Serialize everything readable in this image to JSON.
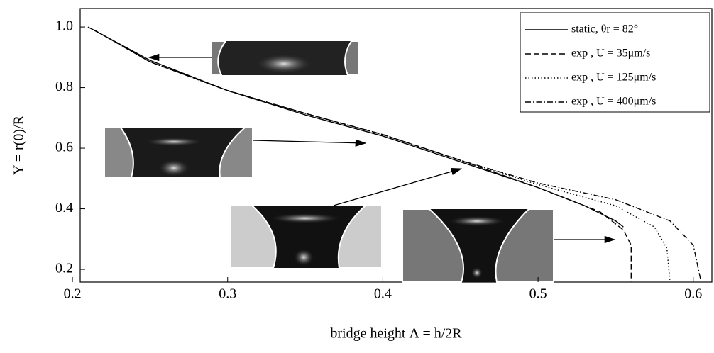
{
  "chart_data": {
    "type": "line",
    "xlabel": "bridge height Λ = h/2R",
    "ylabel": "Υ = r(0)/R",
    "xlim": [
      0.205,
      0.612
    ],
    "ylim": [
      0.158,
      1.061
    ],
    "xticks": [
      0.2,
      0.3,
      0.4,
      0.5,
      0.6
    ],
    "yticks": [
      {
        "value": 0.2,
        "label": "0.2"
      },
      {
        "value": 0.4,
        "label": "0.4"
      },
      {
        "value": 0.6,
        "label": "0.6"
      },
      {
        "value": 0.8,
        "label": "0.8"
      },
      {
        "value": 1,
        "label": "1.0"
      }
    ],
    "legend": "upper right",
    "series": [
      {
        "name": "static, θr = 82°",
        "color": "#000000",
        "dash": "solid",
        "x": [
          0.21,
          0.25,
          0.3,
          0.35,
          0.4,
          0.45,
          0.5,
          0.53,
          0.55,
          0.555
        ],
        "values": [
          1.0,
          0.89,
          0.79,
          0.71,
          0.64,
          0.555,
          0.47,
          0.41,
          0.36,
          0.34
        ]
      },
      {
        "name": "exp , U = 35μm/s",
        "color": "#000000",
        "dash": "dashed",
        "x": [
          0.214,
          0.25,
          0.3,
          0.35,
          0.4,
          0.45,
          0.5,
          0.54,
          0.555,
          0.56,
          0.56
        ],
        "values": [
          0.99,
          0.885,
          0.79,
          0.715,
          0.645,
          0.56,
          0.47,
          0.39,
          0.33,
          0.28,
          0.16
        ]
      },
      {
        "name": "exp , U = 125μm/s",
        "color": "#000000",
        "dash": "dotted",
        "x": [
          0.214,
          0.25,
          0.3,
          0.35,
          0.4,
          0.45,
          0.5,
          0.55,
          0.575,
          0.583,
          0.585
        ],
        "values": [
          0.99,
          0.885,
          0.79,
          0.715,
          0.645,
          0.56,
          0.48,
          0.41,
          0.34,
          0.27,
          0.16
        ]
      },
      {
        "name": "exp , U = 400μm/s",
        "color": "#000000",
        "dash": "dashdot",
        "x": [
          0.214,
          0.25,
          0.3,
          0.35,
          0.4,
          0.45,
          0.5,
          0.55,
          0.585,
          0.6,
          0.605
        ],
        "values": [
          0.99,
          0.885,
          0.79,
          0.715,
          0.645,
          0.56,
          0.485,
          0.43,
          0.36,
          0.28,
          0.16
        ]
      }
    ]
  }
}
